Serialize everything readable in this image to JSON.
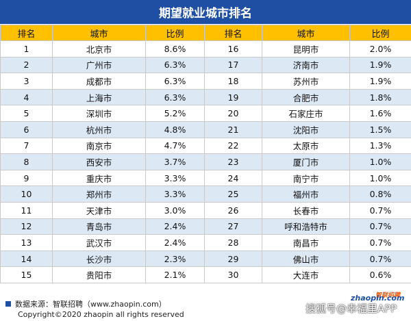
{
  "title": "期望就业城市排名",
  "headers": [
    "排名",
    "城市",
    "比例",
    "排名",
    "城市",
    "比例"
  ],
  "chart_data": {
    "type": "table",
    "title": "期望就业城市排名",
    "columns": [
      "排名",
      "城市",
      "比例"
    ],
    "rows": [
      {
        "rank": "1",
        "city": "北京市",
        "pct": "8.6%"
      },
      {
        "rank": "2",
        "city": "广州市",
        "pct": "6.3%"
      },
      {
        "rank": "3",
        "city": "成都市",
        "pct": "6.3%"
      },
      {
        "rank": "4",
        "city": "上海市",
        "pct": "6.3%"
      },
      {
        "rank": "5",
        "city": "深圳市",
        "pct": "5.2%"
      },
      {
        "rank": "6",
        "city": "杭州市",
        "pct": "4.8%"
      },
      {
        "rank": "7",
        "city": "南京市",
        "pct": "4.7%"
      },
      {
        "rank": "8",
        "city": "西安市",
        "pct": "3.7%"
      },
      {
        "rank": "9",
        "city": "重庆市",
        "pct": "3.3%"
      },
      {
        "rank": "10",
        "city": "郑州市",
        "pct": "3.3%"
      },
      {
        "rank": "11",
        "city": "天津市",
        "pct": "3.0%"
      },
      {
        "rank": "12",
        "city": "青岛市",
        "pct": "2.4%"
      },
      {
        "rank": "13",
        "city": "武汉市",
        "pct": "2.4%"
      },
      {
        "rank": "14",
        "city": "长沙市",
        "pct": "2.3%"
      },
      {
        "rank": "15",
        "city": "贵阳市",
        "pct": "2.1%"
      },
      {
        "rank": "16",
        "city": "昆明市",
        "pct": "2.0%"
      },
      {
        "rank": "17",
        "city": "济南市",
        "pct": "1.9%"
      },
      {
        "rank": "18",
        "city": "苏州市",
        "pct": "1.9%"
      },
      {
        "rank": "19",
        "city": "合肥市",
        "pct": "1.8%"
      },
      {
        "rank": "20",
        "city": "石家庄市",
        "pct": "1.6%"
      },
      {
        "rank": "21",
        "city": "沈阳市",
        "pct": "1.5%"
      },
      {
        "rank": "22",
        "city": "太原市",
        "pct": "1.3%"
      },
      {
        "rank": "23",
        "city": "厦门市",
        "pct": "1.0%"
      },
      {
        "rank": "24",
        "city": "南宁市",
        "pct": "1.0%"
      },
      {
        "rank": "25",
        "city": "福州市",
        "pct": "0.8%"
      },
      {
        "rank": "26",
        "city": "长春市",
        "pct": "0.7%"
      },
      {
        "rank": "27",
        "city": "呼和浩特市",
        "pct": "0.7%"
      },
      {
        "rank": "28",
        "city": "南昌市",
        "pct": "0.7%"
      },
      {
        "rank": "29",
        "city": "佛山市",
        "pct": "0.7%"
      },
      {
        "rank": "30",
        "city": "大连市",
        "pct": "0.6%"
      }
    ]
  },
  "footer": {
    "source": "数据来源：智联招聘（www.zhaopin.com）",
    "copyright": "Copyright©2020 zhaopin all rights reserved"
  },
  "logo": {
    "en": "zhaopin.com",
    "cn": "智联招聘"
  },
  "watermark": "搜狐号@幸福里APP",
  "colors": {
    "title_bg": "#1f4fa3",
    "header_bg": "#ffc000",
    "alt_row": "#dde8f5"
  }
}
